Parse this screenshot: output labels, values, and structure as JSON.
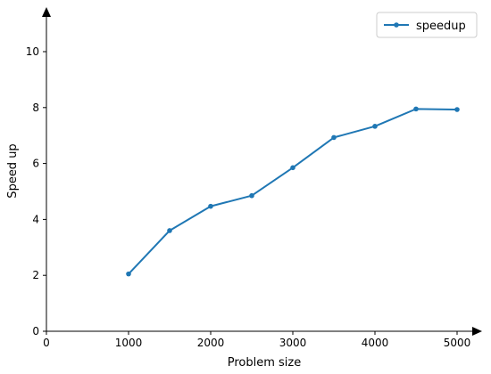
{
  "chart_data": {
    "type": "line",
    "title": "",
    "xlabel": "Problem size",
    "ylabel": "Speed up",
    "xlim": [
      0,
      5250
    ],
    "ylim": [
      0,
      11.2
    ],
    "xticks": [
      0,
      1000,
      2000,
      3000,
      4000,
      5000
    ],
    "yticks": [
      0,
      2,
      4,
      6,
      8,
      10
    ],
    "grid": false,
    "legend": "top-right",
    "series": [
      {
        "name": "speedup",
        "color": "#1f77b4",
        "marker": "circle",
        "x": [
          1000,
          1500,
          2000,
          2500,
          3000,
          3500,
          4000,
          4500,
          5000
        ],
        "y": [
          2.05,
          3.6,
          4.47,
          4.85,
          5.85,
          6.93,
          7.33,
          7.95,
          7.93
        ]
      }
    ]
  }
}
